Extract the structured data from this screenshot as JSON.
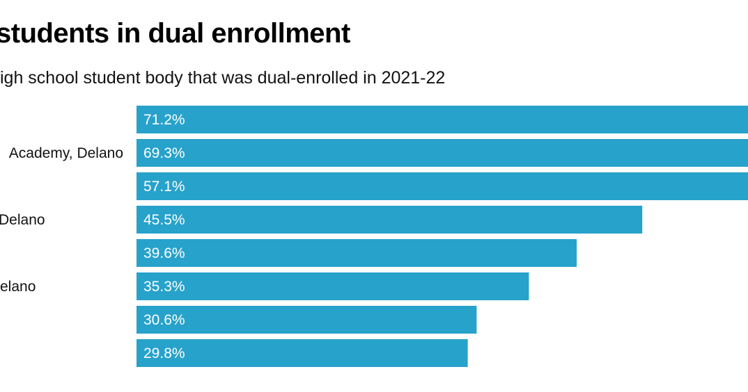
{
  "chart_data": {
    "type": "bar",
    "orientation": "horizontal",
    "title": "students in dual enrollment",
    "subtitle": "igh school student body that was dual-enrolled in 2021-22",
    "categories": [
      "",
      "Academy, Delano",
      "",
      "Delano",
      "",
      "elano",
      "",
      ""
    ],
    "values": [
      71.2,
      69.3,
      57.1,
      45.5,
      39.6,
      35.3,
      30.6,
      29.8
    ],
    "value_labels": [
      "71.2%",
      "69.3%",
      "57.1%",
      "45.5%",
      "39.6%",
      "35.3%",
      "30.6%",
      "29.8%"
    ],
    "unit": "%",
    "bar_color": "#27a2cb",
    "grid": false
  }
}
